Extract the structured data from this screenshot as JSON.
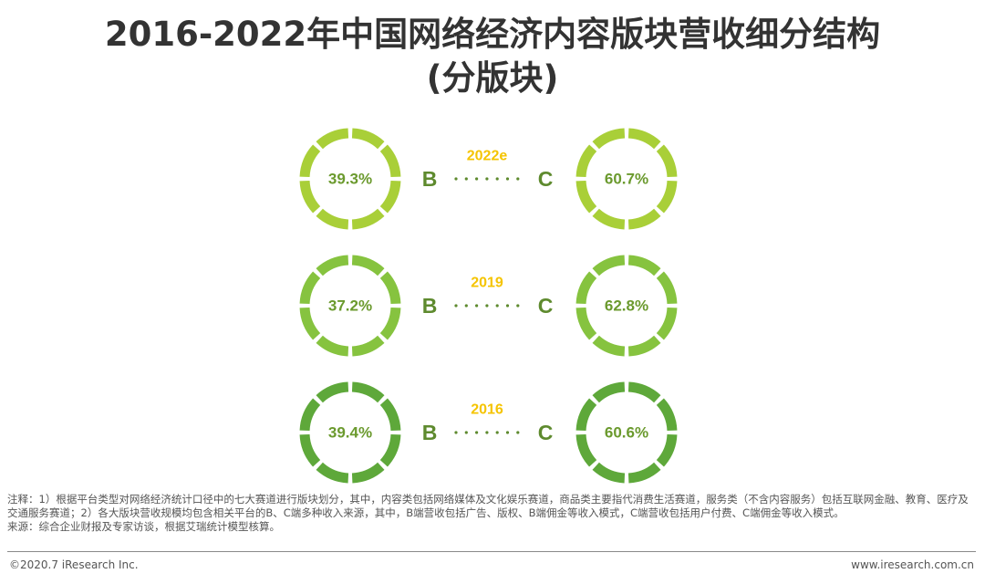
{
  "title_line1": "2016-2022年中国网络经济内容版块营收细分结构",
  "title_line2": "(分版块)",
  "chart_data": {
    "type": "donut-pair",
    "rows": [
      {
        "year": "2022e",
        "b_label": "B",
        "c_label": "C",
        "b_value": 39.3,
        "c_value": 60.7,
        "b_text": "39.3%",
        "c_text": "60.7%",
        "color": "#A9CF38"
      },
      {
        "year": "2019",
        "b_label": "B",
        "c_label": "C",
        "b_value": 37.2,
        "c_value": 62.8,
        "b_text": "37.2%",
        "c_text": "62.8%",
        "color": "#86C33F"
      },
      {
        "year": "2016",
        "b_label": "B",
        "c_label": "C",
        "b_value": 39.4,
        "c_value": 60.6,
        "b_text": "39.4%",
        "c_text": "60.6%",
        "color": "#5EA83A"
      }
    ],
    "year_color": "#F5C400",
    "label_color": "#5E8A2E",
    "value_color": "#6B9A2E"
  },
  "notes": {
    "note": "注释：1）根据平台类型对网络经济统计口径中的七大赛道进行版块划分，其中，内容类包括网络媒体及文化娱乐赛道，商品类主要指代消费生活赛道，服务类（不含内容服务）包括互联网金融、教育、医疗及交通服务赛道；2）各大版块营收规模均包含相关平台的B、C端多种收入来源，其中，B端营收包括广告、版权、B端佣金等收入模式，C端营收包括用户付费、C端佣金等收入模式。",
    "source": "来源：综合企业财报及专家访谈，根据艾瑞统计模型核算。"
  },
  "footer": {
    "left": "©2020.7 iResearch Inc.",
    "right": "www.iresearch.com.cn"
  }
}
